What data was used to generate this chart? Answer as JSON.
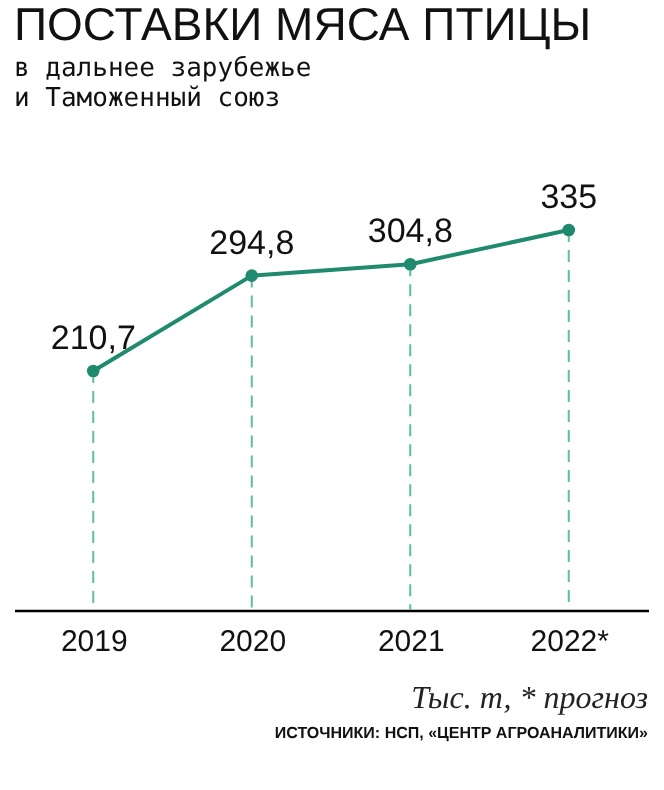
{
  "chart_data": {
    "type": "line",
    "title": "ПОСТАВКИ МЯСА ПТИЦЫ",
    "subtitle": [
      "в дальнее зарубежье",
      "и Таможенный союз"
    ],
    "categories": [
      "2019",
      "2020",
      "2021",
      "2022*"
    ],
    "series": [
      {
        "color": "#1f8a6e",
        "values": [
          210.7,
          294.8,
          304.8,
          335
        ],
        "value_labels": [
          "210,7",
          "294,8",
          "304,8",
          "335"
        ]
      }
    ],
    "tick_labels": "x",
    "grid": "x",
    "marker": "circle",
    "line_style": "solid",
    "annotations": [
      "Тыс. т, * прогноз",
      "ИСТОЧНИКИ: НСП, «ЦЕНТР АГРОАНАЛИТИКИ»"
    ]
  }
}
